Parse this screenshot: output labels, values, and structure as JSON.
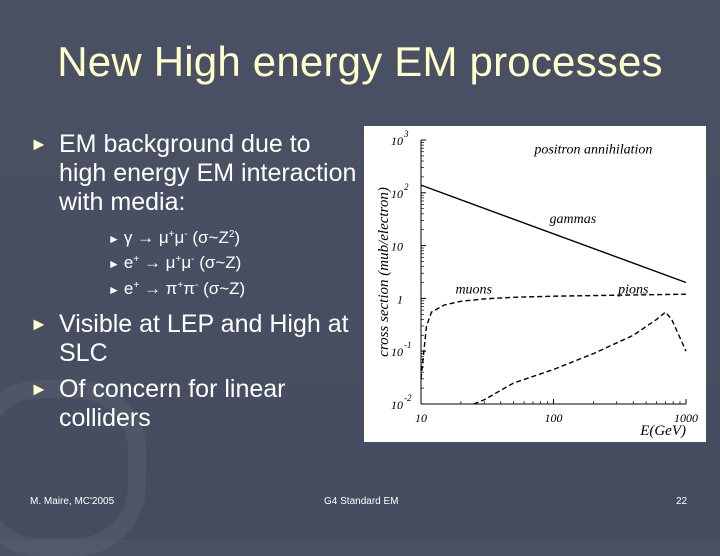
{
  "slide": {
    "title": "New High energy EM processes",
    "bullets": [
      {
        "marker": "►",
        "text": "EM background  due to high energy EM interaction with media:"
      },
      {
        "marker": "►",
        "text": "Visible at LEP and High at SLC"
      },
      {
        "marker": "►",
        "text": "Of concern for linear colliders"
      }
    ],
    "sub_bullets": [
      {
        "marker": "►",
        "lhs": "γ",
        "arrow": "→",
        "prod1": "μ",
        "c1": "+",
        "prod2": "μ",
        "c2": "-",
        "rel_open": "(σ~Z",
        "rel_exp": "2",
        "rel_close": ")"
      },
      {
        "marker": "►",
        "lhs": "e",
        "lhs_c": "+",
        "arrow": "→",
        "prod1": "μ",
        "c1": "+",
        "prod2": "μ",
        "c2": "-",
        "rel": "(σ~Z)"
      },
      {
        "marker": "►",
        "lhs": "e",
        "lhs_c": "+",
        "arrow": "→",
        "prod1": "π",
        "c1": "+",
        "prod2": "π",
        "c2": "-",
        "rel": "(σ~Z)"
      }
    ],
    "footer": {
      "left": "M. Maire, MC'2005",
      "center": "G4 Standard EM",
      "right": "22"
    }
  },
  "chart_data": {
    "type": "line",
    "xlabel": "E(GeV)",
    "ylabel": "cross section (mub/electron)",
    "xscale": "log",
    "yscale": "log",
    "xlim": [
      10,
      1000
    ],
    "ylim": [
      0.01,
      1000
    ],
    "xticks": [
      "10",
      "100",
      "1000"
    ],
    "yticks": [
      {
        "base": "10",
        "exp": "3"
      },
      {
        "base": "10",
        "exp": "2"
      },
      {
        "base": "10",
        "exp": ""
      },
      {
        "base": "1",
        "exp": ""
      },
      {
        "base": "10",
        "exp": "-1"
      },
      {
        "base": "10",
        "exp": "-2"
      }
    ],
    "series": [
      {
        "name": "gammas",
        "style": "solid",
        "points": [
          [
            10,
            140
          ],
          [
            1000,
            2
          ]
        ]
      },
      {
        "name": "muons",
        "style": "dashed",
        "points": [
          [
            10,
            0.03
          ],
          [
            11,
            0.3
          ],
          [
            12,
            0.55
          ],
          [
            15,
            0.75
          ],
          [
            20,
            0.88
          ],
          [
            30,
            0.98
          ],
          [
            50,
            1.05
          ],
          [
            100,
            1.1
          ],
          [
            300,
            1.15
          ],
          [
            1000,
            1.2
          ]
        ]
      },
      {
        "name": "pions",
        "style": "dashed",
        "points": [
          [
            25,
            0.01
          ],
          [
            30,
            0.012
          ],
          [
            50,
            0.025
          ],
          [
            100,
            0.045
          ],
          [
            200,
            0.09
          ],
          [
            400,
            0.2
          ],
          [
            600,
            0.4
          ],
          [
            700,
            0.55
          ],
          [
            780,
            0.4
          ],
          [
            1000,
            0.1
          ]
        ]
      }
    ],
    "annotations": [
      {
        "text": "positron annihilation",
        "x": 200,
        "y": 550
      },
      {
        "text": "gammas",
        "x": 140,
        "y": 27
      },
      {
        "text": "muons",
        "x": 25,
        "y": 1.25
      },
      {
        "text": "pions",
        "x": 400,
        "y": 1.25
      }
    ]
  }
}
